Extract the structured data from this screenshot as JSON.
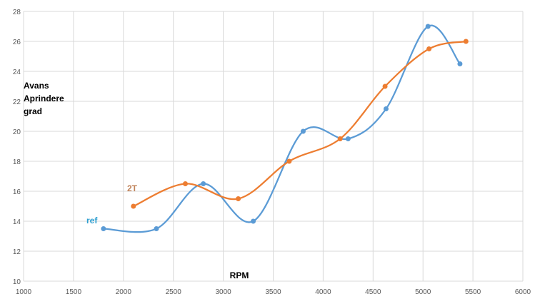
{
  "chart_data": {
    "type": "scatter",
    "title": "",
    "xlabel": "RPM",
    "ylabel_lines": [
      "Avans",
      "Aprindere",
      "grad"
    ],
    "xlim": [
      1000,
      6000
    ],
    "ylim": [
      10,
      28
    ],
    "x_ticks": [
      "1000",
      "1500",
      "2000",
      "2500",
      "3000",
      "3500",
      "4000",
      "4500",
      "5000",
      "5500",
      "6000"
    ],
    "y_ticks": [
      "10",
      "12",
      "14",
      "16",
      "18",
      "20",
      "22",
      "24",
      "26",
      "28"
    ],
    "grid": true,
    "smooth_lines": true,
    "series": [
      {
        "name": "ref",
        "color": "#5b9bd5",
        "label_color": "#2e9fd0",
        "x": [
          1800,
          2330,
          2800,
          3300,
          3800,
          4250,
          4630,
          5050,
          5370
        ],
        "y": [
          13.5,
          13.5,
          16.5,
          14,
          20,
          19.5,
          21.5,
          27,
          24.5
        ]
      },
      {
        "name": "2T",
        "color": "#ed7d31",
        "label_color": "#c0835a",
        "x": [
          2100,
          2620,
          3150,
          3660,
          4170,
          4620,
          5060,
          5430
        ],
        "y": [
          15,
          16.5,
          15.5,
          18,
          19.5,
          23,
          25.5,
          26
        ]
      }
    ]
  }
}
